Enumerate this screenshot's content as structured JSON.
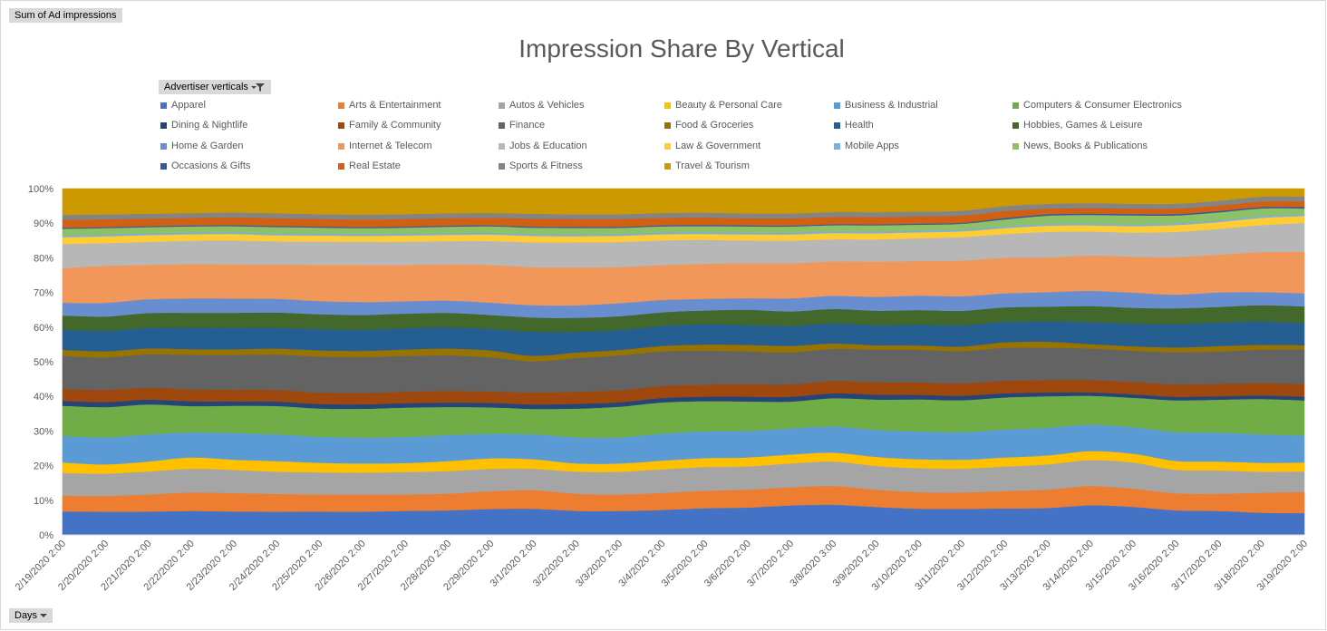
{
  "buttons": {
    "sum_label": "Sum of Ad impressions",
    "advertiser_label": "Advertiser verticals",
    "days_label": "Days"
  },
  "chart_data": {
    "type": "area",
    "stacked": "percent",
    "title": "Impression Share By Vertical",
    "ylim": [
      0,
      100
    ],
    "yticks": [
      "0%",
      "10%",
      "20%",
      "30%",
      "40%",
      "50%",
      "60%",
      "70%",
      "80%",
      "90%",
      "100%"
    ],
    "grid": false,
    "legend_position": "top",
    "categories": [
      "2/19/2020 2:00",
      "2/20/2020 2:00",
      "2/21/2020 2:00",
      "2/22/2020 2:00",
      "2/23/2020 2:00",
      "2/24/2020 2:00",
      "2/25/2020 2:00",
      "2/26/2020 2:00",
      "2/27/2020 2:00",
      "2/28/2020 2:00",
      "2/29/2020 2:00",
      "3/1/2020 2:00",
      "3/2/2020 2:00",
      "3/3/2020 2:00",
      "3/4/2020 2:00",
      "3/5/2020 2:00",
      "3/6/2020 2:00",
      "3/7/2020 2:00",
      "3/8/2020 3:00",
      "3/9/2020 2:00",
      "3/10/2020 2:00",
      "3/11/2020 2:00",
      "3/12/2020 2:00",
      "3/13/2020 2:00",
      "3/14/2020 2:00",
      "3/15/2020 2:00",
      "3/16/2020 2:00",
      "3/17/2020 2:00",
      "3/18/2020 2:00",
      "3/19/2020 2:00"
    ],
    "series": [
      {
        "name": "Apparel",
        "color": "#4472c4",
        "values": [
          6.8,
          6.8,
          6.8,
          7.0,
          6.9,
          6.8,
          6.8,
          6.8,
          7.0,
          7.2,
          7.6,
          7.6,
          7.0,
          7.0,
          7.3,
          7.8,
          8.0,
          8.6,
          8.8,
          8.1,
          7.6,
          7.6,
          7.6,
          7.8,
          8.6,
          8.2,
          7.2,
          7.0,
          6.4,
          6.2
        ]
      },
      {
        "name": "Arts & Entertainment",
        "color": "#ed7d31",
        "values": [
          4.6,
          4.6,
          5.0,
          5.4,
          5.4,
          5.2,
          5.0,
          5.0,
          4.8,
          4.9,
          5.2,
          5.4,
          5.0,
          4.8,
          5.0,
          5.1,
          5.2,
          5.3,
          5.4,
          5.0,
          4.8,
          4.8,
          5.0,
          5.3,
          5.6,
          5.3,
          5.0,
          5.0,
          5.8,
          6.0
        ]
      },
      {
        "name": "Autos & Vehicles",
        "color": "#a5a5a5",
        "values": [
          6.5,
          6.5,
          6.7,
          6.9,
          6.8,
          6.5,
          6.4,
          6.4,
          6.5,
          6.6,
          6.5,
          6.2,
          6.4,
          6.6,
          6.9,
          6.9,
          6.8,
          6.9,
          7.1,
          6.9,
          6.9,
          6.9,
          7.0,
          7.3,
          7.5,
          7.6,
          6.8,
          6.8,
          6.0,
          5.8
        ]
      },
      {
        "name": "Beauty & Personal Care",
        "color": "#ffc000",
        "values": [
          3.1,
          2.7,
          2.9,
          3.3,
          3.0,
          3.1,
          2.8,
          2.7,
          2.6,
          2.9,
          3.1,
          2.8,
          2.4,
          2.4,
          2.5,
          2.6,
          2.6,
          2.6,
          2.6,
          2.6,
          2.6,
          2.6,
          2.6,
          2.6,
          2.6,
          2.6,
          2.6,
          2.6,
          2.6,
          2.6
        ]
      },
      {
        "name": "Business & Industrial",
        "color": "#5b9bd5",
        "values": [
          7.6,
          7.9,
          7.9,
          7.3,
          7.8,
          7.8,
          7.6,
          7.6,
          7.6,
          7.6,
          7.2,
          7.2,
          7.6,
          7.6,
          7.9,
          7.8,
          7.7,
          7.6,
          7.6,
          7.8,
          8.0,
          8.0,
          8.0,
          8.0,
          7.6,
          7.7,
          8.4,
          8.4,
          8.2,
          7.6
        ]
      },
      {
        "name": "Computers & Consumer Electronics",
        "color": "#70ad47",
        "values": [
          8.8,
          8.8,
          8.7,
          7.7,
          8.0,
          8.3,
          8.2,
          8.4,
          8.5,
          8.2,
          7.7,
          7.4,
          8.3,
          8.9,
          9.1,
          8.8,
          8.6,
          7.8,
          8.2,
          8.8,
          9.3,
          9.3,
          9.2,
          9.1,
          8.4,
          8.6,
          9.3,
          9.6,
          10.2,
          10.0
        ]
      },
      {
        "name": "Dining & Nightlife",
        "color": "#264478",
        "values": [
          1.4,
          1.5,
          1.4,
          1.4,
          1.3,
          1.3,
          1.3,
          1.3,
          1.3,
          1.3,
          1.3,
          1.3,
          1.4,
          1.3,
          1.3,
          1.3,
          1.4,
          1.4,
          1.4,
          1.4,
          1.3,
          1.3,
          1.2,
          1.1,
          1.0,
          1.0,
          1.0,
          1.0,
          1.0,
          1.0
        ]
      },
      {
        "name": "Family & Community",
        "color": "#9e480e",
        "values": [
          3.5,
          3.5,
          3.5,
          3.5,
          3.4,
          3.4,
          3.3,
          3.3,
          3.3,
          3.4,
          3.3,
          3.5,
          3.5,
          3.5,
          3.5,
          3.5,
          3.6,
          3.6,
          3.6,
          3.6,
          3.6,
          3.6,
          3.6,
          3.6,
          3.6,
          3.6,
          3.6,
          3.6,
          3.6,
          3.6
        ]
      },
      {
        "name": "Finance",
        "color": "#636363",
        "values": [
          9.5,
          9.5,
          9.7,
          10.0,
          10.2,
          10.3,
          10.5,
          10.5,
          10.4,
          10.4,
          10.0,
          9.0,
          9.8,
          10.1,
          10.1,
          9.9,
          9.6,
          9.3,
          9.3,
          9.4,
          9.4,
          9.4,
          9.4,
          9.3,
          9.1,
          9.1,
          9.4,
          9.4,
          9.6,
          9.8
        ]
      },
      {
        "name": "Food & Groceries",
        "color": "#997300",
        "values": [
          1.8,
          1.8,
          1.7,
          1.7,
          1.7,
          1.8,
          1.8,
          1.8,
          1.9,
          2.0,
          2.0,
          1.6,
          1.6,
          1.6,
          1.6,
          1.8,
          1.9,
          1.9,
          1.6,
          1.3,
          1.3,
          1.3,
          1.6,
          1.8,
          1.3,
          1.3,
          1.4,
          1.6,
          1.4,
          1.2
        ]
      },
      {
        "name": "Health",
        "color": "#255e91",
        "values": [
          5.8,
          6.0,
          6.0,
          6.3,
          6.3,
          6.1,
          6.2,
          6.2,
          6.2,
          6.2,
          6.3,
          7.0,
          6.0,
          5.8,
          5.8,
          5.9,
          5.8,
          5.8,
          5.8,
          5.8,
          6.0,
          6.2,
          5.8,
          5.9,
          6.4,
          6.6,
          6.8,
          6.8,
          6.8,
          6.2
        ]
      },
      {
        "name": "Hobbies, Games & Leisure",
        "color": "#43682b",
        "values": [
          4.1,
          4.1,
          4.3,
          4.3,
          4.4,
          4.4,
          4.3,
          4.3,
          4.2,
          4.2,
          4.1,
          4.1,
          4.1,
          4.0,
          4.0,
          4.0,
          4.4,
          4.2,
          4.2,
          4.2,
          4.2,
          4.2,
          4.2,
          4.2,
          4.6,
          4.6,
          4.6,
          4.6,
          4.6,
          4.8
        ]
      },
      {
        "name": "Home & Garden",
        "color": "#698ed0",
        "values": [
          3.7,
          4.0,
          4.0,
          4.2,
          4.2,
          4.0,
          3.8,
          3.8,
          3.6,
          3.6,
          3.6,
          3.6,
          3.6,
          3.8,
          3.6,
          3.4,
          3.4,
          3.8,
          3.8,
          4.0,
          4.2,
          4.2,
          4.0,
          4.2,
          4.4,
          4.4,
          4.0,
          4.2,
          3.8,
          3.7
        ]
      },
      {
        "name": "Internet & Telecom",
        "color": "#f1975a",
        "values": [
          10.0,
          10.8,
          10.0,
          10.0,
          10.0,
          10.0,
          10.5,
          10.8,
          10.5,
          10.6,
          11.0,
          11.0,
          11.0,
          10.5,
          10.2,
          10.2,
          10.2,
          10.2,
          10.0,
          10.2,
          10.0,
          10.4,
          10.2,
          10.0,
          10.2,
          10.5,
          11.0,
          11.0,
          11.5,
          11.8
        ]
      },
      {
        "name": "Jobs & Education",
        "color": "#b7b7b7",
        "values": [
          7.0,
          6.6,
          6.7,
          6.8,
          7.0,
          6.8,
          6.8,
          6.8,
          6.8,
          6.8,
          7.0,
          7.2,
          7.3,
          7.3,
          7.2,
          7.0,
          6.6,
          6.6,
          6.4,
          6.4,
          6.6,
          6.8,
          6.8,
          7.4,
          7.0,
          7.0,
          7.3,
          7.5,
          7.8,
          8.2
        ]
      },
      {
        "name": "Law & Government",
        "color": "#ffcd33",
        "values": [
          2.0,
          2.0,
          2.0,
          1.9,
          1.9,
          1.8,
          1.8,
          1.7,
          1.8,
          1.8,
          1.9,
          1.9,
          1.8,
          1.8,
          1.8,
          1.7,
          1.8,
          1.8,
          1.8,
          1.8,
          1.7,
          1.7,
          1.7,
          1.8,
          1.8,
          1.9,
          2.0,
          2.0,
          2.1,
          2.0
        ]
      },
      {
        "name": "Mobile Apps",
        "color": "#7cafdd",
        "values": [
          0.5,
          0.5,
          0.5,
          0.5,
          0.5,
          0.5,
          0.5,
          0.5,
          0.5,
          0.5,
          0.5,
          0.5,
          0.5,
          0.5,
          0.5,
          0.5,
          0.5,
          0.5,
          0.5,
          0.5,
          0.5,
          0.5,
          0.5,
          0.5,
          0.5,
          0.5,
          0.5,
          0.5,
          0.5,
          0.5
        ]
      },
      {
        "name": "News, Books & Publications",
        "color": "#8cc168",
        "values": [
          1.9,
          1.9,
          1.8,
          1.8,
          1.8,
          1.9,
          1.8,
          1.8,
          1.8,
          1.9,
          1.9,
          1.9,
          1.9,
          1.8,
          1.8,
          1.8,
          1.8,
          1.8,
          1.8,
          1.8,
          1.7,
          1.7,
          2.0,
          2.4,
          2.5,
          2.6,
          2.3,
          2.3,
          2.2,
          1.6
        ]
      },
      {
        "name": "Occasions & Gifts",
        "color": "#335aa1",
        "values": [
          0.3,
          0.3,
          0.3,
          0.3,
          0.3,
          0.3,
          0.3,
          0.3,
          0.3,
          0.3,
          0.3,
          0.3,
          0.3,
          0.3,
          0.3,
          0.3,
          0.3,
          0.3,
          0.3,
          0.3,
          0.3,
          0.3,
          0.4,
          0.4,
          0.4,
          0.4,
          0.4,
          0.4,
          0.4,
          0.4
        ]
      },
      {
        "name": "Real Estate",
        "color": "#d26012",
        "values": [
          2.3,
          2.3,
          2.2,
          2.2,
          2.3,
          2.3,
          2.2,
          2.2,
          2.2,
          2.2,
          2.2,
          2.3,
          2.3,
          2.3,
          2.2,
          2.2,
          2.1,
          2.1,
          2.1,
          2.1,
          2.1,
          2.1,
          2.0,
          1.6,
          1.6,
          1.6,
          1.6,
          1.6,
          1.6,
          1.6
        ]
      },
      {
        "name": "Sports & Fitness",
        "color": "#848484",
        "values": [
          1.4,
          1.4,
          1.4,
          1.4,
          1.4,
          1.4,
          1.4,
          1.4,
          1.4,
          1.4,
          1.4,
          1.4,
          1.4,
          1.4,
          1.4,
          1.4,
          1.4,
          1.4,
          1.4,
          1.4,
          1.4,
          1.4,
          1.4,
          1.4,
          1.4,
          1.4,
          1.4,
          1.4,
          1.4,
          1.4
        ]
      },
      {
        "name": "Travel & Tourism",
        "color": "#cc9a00",
        "values": [
          7.6,
          7.5,
          7.3,
          7.1,
          7.0,
          7.2,
          7.4,
          7.6,
          7.4,
          7.2,
          7.1,
          7.3,
          7.4,
          7.4,
          7.1,
          7.0,
          7.2,
          7.2,
          6.8,
          6.8,
          6.6,
          6.4,
          5.0,
          4.4,
          4.2,
          4.4,
          4.4,
          3.5,
          2.3,
          2.2
        ]
      }
    ]
  }
}
